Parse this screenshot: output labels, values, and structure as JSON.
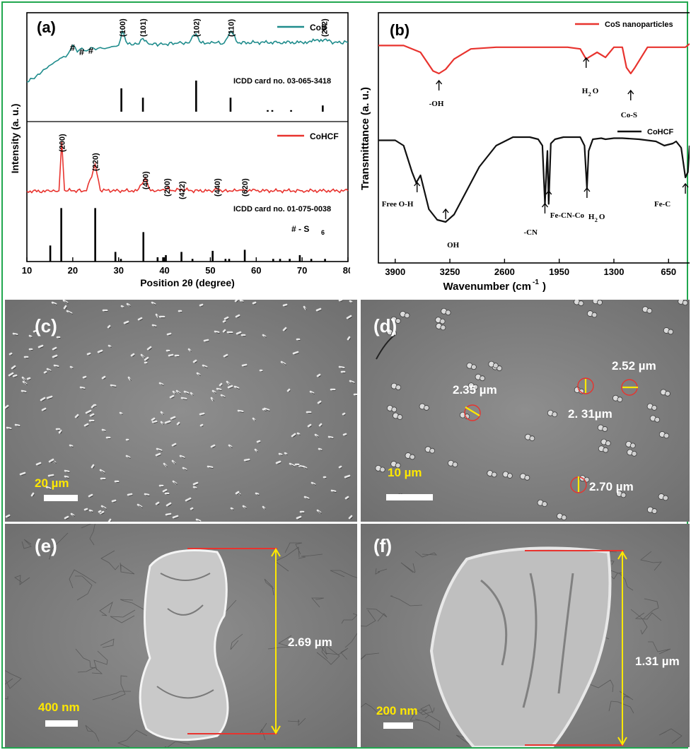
{
  "chart_data": [
    {
      "panel": "(a)",
      "type": "line",
      "xlabel": "Position 2θ (degree)",
      "ylabel": "Intensity (a. u.)",
      "xlim": [
        10,
        80
      ],
      "xticks": [
        "10",
        "20",
        "30",
        "40",
        "50",
        "60",
        "70",
        "80"
      ],
      "series": [
        {
          "name": "CoS",
          "color": "#1f8c8c",
          "x": [
            10,
            12,
            14,
            16,
            18,
            19,
            20,
            21,
            22,
            23,
            24,
            25,
            26,
            27,
            28,
            29,
            30,
            30.8,
            32,
            34,
            35.3,
            37,
            40,
            43,
            45,
            46.9,
            48,
            51,
            53,
            54.5,
            56,
            60,
            65,
            70,
            74.8,
            77,
            80
          ],
          "y": [
            0.05,
            0.15,
            0.28,
            0.4,
            0.5,
            0.55,
            0.7,
            0.58,
            0.65,
            0.6,
            0.66,
            0.62,
            0.66,
            0.64,
            0.66,
            0.68,
            0.7,
            0.95,
            0.72,
            0.72,
            0.82,
            0.72,
            0.72,
            0.74,
            0.74,
            0.9,
            0.74,
            0.74,
            0.74,
            0.95,
            0.74,
            0.75,
            0.75,
            0.75,
            0.8,
            0.75,
            0.75
          ]
        },
        {
          "name": "CoHCF",
          "color": "#e8332e",
          "x": [
            10,
            15,
            17,
            17.6,
            18.2,
            20,
            23,
            24.9,
            26,
            30,
            34,
            35.8,
            37,
            39,
            40.5,
            42,
            43.8,
            46,
            50,
            51.5,
            53,
            56,
            57.5,
            60,
            65,
            70,
            75,
            80
          ],
          "y": [
            0.02,
            0.02,
            0.03,
            1.0,
            0.04,
            0.03,
            0.03,
            0.55,
            0.04,
            0.03,
            0.03,
            0.28,
            0.03,
            0.03,
            0.08,
            0.03,
            0.06,
            0.03,
            0.03,
            0.06,
            0.03,
            0.03,
            0.05,
            0.03,
            0.03,
            0.03,
            0.03,
            0.03
          ]
        }
      ],
      "peak_labels_cos": [
        {
          "x": 30.8,
          "label": "(100)"
        },
        {
          "x": 35.3,
          "label": "(101)"
        },
        {
          "x": 46.9,
          "label": "(102)"
        },
        {
          "x": 54.5,
          "label": "(110)"
        },
        {
          "x": 74.8,
          "label": "(202)"
        }
      ],
      "hash_marks": [
        {
          "x": 20,
          "label": "#"
        },
        {
          "x": 22,
          "label": "#"
        },
        {
          "x": 24,
          "label": "#"
        }
      ],
      "peak_labels_cohcf": [
        {
          "x": 17.6,
          "label": "(200)"
        },
        {
          "x": 24.9,
          "label": "(220)"
        },
        {
          "x": 35.8,
          "label": "(400)"
        },
        {
          "x": 40.5,
          "label": "(200)"
        },
        {
          "x": 43.8,
          "label": "(422)"
        },
        {
          "x": 51.5,
          "label": "(440)"
        },
        {
          "x": 57.5,
          "label": "(620)"
        }
      ],
      "ref_cos": {
        "label": "ICDD card no. 03-065-3418",
        "x": [
          30.6,
          35.3,
          46.9,
          54.4,
          62.5,
          63.5,
          67.6,
          74.5
        ],
        "h": [
          0.75,
          0.45,
          1.0,
          0.45,
          0.05,
          0.05,
          0.05,
          0.2
        ]
      },
      "ref_cohcf": {
        "label": "ICDD card no. 01-075-0038",
        "x": [
          15.1,
          17.5,
          24.9,
          29.3,
          30.5,
          35.4,
          38.5,
          39.7,
          40.3,
          43.7,
          46.1,
          50.5,
          53.3,
          54.1,
          57.5,
          63.7,
          65.2,
          67.3,
          69.5,
          72,
          75
        ],
        "h": [
          0.3,
          1.0,
          1.0,
          0.18,
          0.05,
          0.55,
          0.08,
          0.08,
          0.12,
          0.18,
          0.05,
          0.2,
          0.05,
          0.05,
          0.22,
          0.05,
          0.05,
          0.05,
          0.12,
          0.05,
          0.05
        ]
      },
      "annotation": "# - S",
      "annotation_sub": "6"
    },
    {
      "panel": "(b)",
      "type": "line",
      "xlabel": "Wavenumber (cm",
      "xlabel_sup": "-1",
      "xlabel_end": ")",
      "ylabel": "Transmittance (a. u.)",
      "xlim": [
        4100,
        400
      ],
      "xticks": [
        "3900",
        "3250",
        "2600",
        "1950",
        "1300",
        "650"
      ],
      "series": [
        {
          "name": "CoS nanoparticles",
          "color": "#e8332e",
          "x": [
            4100,
            3800,
            3600,
            3450,
            3380,
            3300,
            3200,
            3000,
            2700,
            2400,
            2200,
            2000,
            1850,
            1700,
            1630,
            1600,
            1500,
            1400,
            1300,
            1200,
            1150,
            1100,
            1050,
            900,
            800,
            700,
            600,
            500,
            450,
            400
          ],
          "y": [
            0.88,
            0.88,
            0.8,
            0.58,
            0.55,
            0.6,
            0.72,
            0.84,
            0.86,
            0.86,
            0.86,
            0.86,
            0.86,
            0.84,
            0.72,
            0.74,
            0.8,
            0.74,
            0.86,
            0.86,
            0.62,
            0.55,
            0.62,
            0.86,
            0.86,
            0.86,
            0.86,
            0.86,
            0.86,
            0.9
          ]
        },
        {
          "name": "CoHCF",
          "color": "#111111",
          "x": [
            4100,
            3900,
            3800,
            3700,
            3650,
            3600,
            3500,
            3400,
            3300,
            3200,
            3100,
            3000,
            2900,
            2700,
            2500,
            2400,
            2300,
            2200,
            2150,
            2120,
            2100,
            2090,
            2075,
            2050,
            2000,
            1900,
            1800,
            1700,
            1650,
            1620,
            1600,
            1550,
            1450,
            1400,
            1300,
            1200,
            1000,
            800,
            700,
            600,
            560,
            500,
            450,
            420,
            400
          ],
          "y": [
            0.05,
            0.05,
            0.0,
            -0.25,
            -0.35,
            -0.28,
            -0.6,
            -0.7,
            -0.72,
            -0.65,
            -0.5,
            -0.35,
            -0.2,
            0.0,
            0.08,
            0.08,
            0.08,
            0.06,
            0.0,
            -0.55,
            -0.2,
            -0.05,
            -0.55,
            0.02,
            0.06,
            0.08,
            0.08,
            0.08,
            0.0,
            -0.4,
            -0.05,
            0.06,
            0.07,
            0.06,
            0.07,
            0.07,
            0.06,
            0.04,
            0.0,
            0.02,
            0.04,
            -0.02,
            -0.3,
            -0.25,
            0.0
          ]
        }
      ],
      "annotations": [
        {
          "x": 3380,
          "label": "-OH",
          "series": "CoS nanoparticles"
        },
        {
          "x": 1630,
          "label": "H",
          "sub": "2",
          "end": "O",
          "series": "CoS nanoparticles"
        },
        {
          "x": 1100,
          "label": "Co-S",
          "series": "CoS nanoparticles"
        },
        {
          "x": 3640,
          "label": "Free O-H",
          "series": "CoHCF"
        },
        {
          "x": 3300,
          "label": "OH",
          "series": "CoHCF"
        },
        {
          "x": 2120,
          "label": "-CN",
          "series": "CoHCF"
        },
        {
          "x": 2075,
          "label": "Fe-CN-Co",
          "series": "CoHCF"
        },
        {
          "x": 1620,
          "label": "H",
          "sub": "2",
          "end": "O",
          "series": "CoHCF"
        },
        {
          "x": 450,
          "label": "Fe-C",
          "series": "CoHCF"
        }
      ]
    }
  ],
  "micrographs": {
    "c": {
      "label": "(c)",
      "scale": "20 µm"
    },
    "d": {
      "label": "(d)",
      "scale": "10 µm",
      "measures": [
        "2.35 µm",
        "2.52 µm",
        "2. 31µm",
        "2.70 µm"
      ]
    },
    "e": {
      "label": "(e)",
      "scale": "400 nm",
      "measures": [
        "2.69 µm"
      ]
    },
    "f": {
      "label": "(f)",
      "scale": "200 nm",
      "measures": [
        "1.31 µm"
      ]
    }
  },
  "colors": {
    "border": "#21a74f",
    "cos": "#1f8c8c",
    "red": "#e8332e",
    "sem_bg": "#7a7a7a",
    "measure": "#ffe800"
  }
}
